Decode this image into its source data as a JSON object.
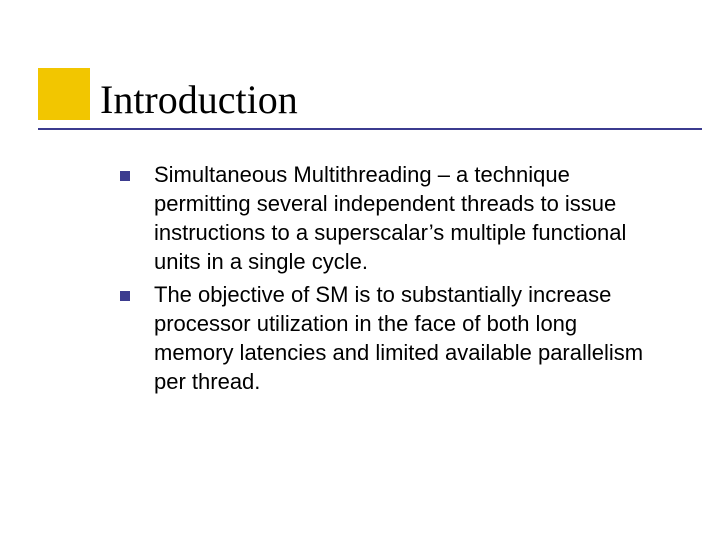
{
  "slide": {
    "title": "Introduction",
    "accent_color": "#f2c600",
    "underline_color": "#3b3b8f",
    "bullet_color": "#3b3b8f",
    "title_font": "Times New Roman",
    "title_fontsize": 40,
    "body_font": "Verdana",
    "body_fontsize": 22,
    "background_color": "#ffffff",
    "bullets": [
      "Simultaneous Multithreading – a technique permitting several independent threads to issue instructions to a superscalar’s multiple functional units in a single cycle.",
      "The objective of SM is to substantially increase processor utilization in the face of both long memory latencies and limited available parallelism per thread."
    ]
  }
}
